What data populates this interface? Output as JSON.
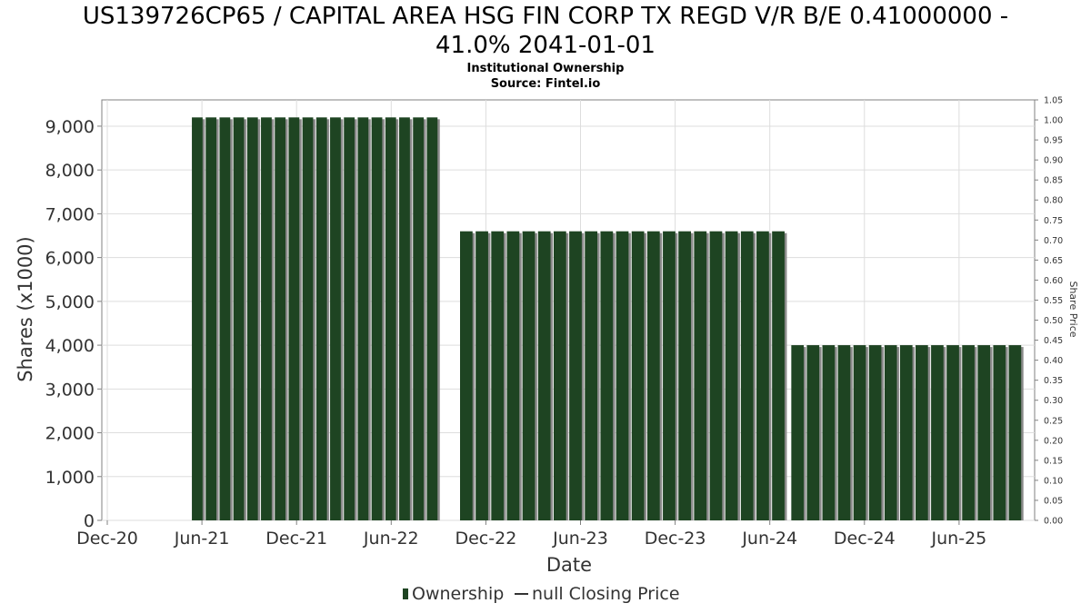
{
  "title_line1": "US139726CP65 / CAPITAL AREA HSG FIN CORP TX REGD V/R B/E 0.41000000 -",
  "title_line2": "41.0% 2041-01-01",
  "subtitle1": "Institutional Ownership",
  "subtitle2": "Source: Fintel.io",
  "colors": {
    "bar": "#1e4422",
    "bar_shadow": "#8a8a8a",
    "grid": "#dddddd",
    "axis": "#808080"
  },
  "chart_data": {
    "type": "bar",
    "xlabel": "Date",
    "ylabel": "Shares (x1000)",
    "y2label": "Share Price",
    "ylim": [
      0,
      9600
    ],
    "y2lim": [
      0,
      1.05
    ],
    "yticks": [
      "0",
      "1,000",
      "2,000",
      "3,000",
      "4,000",
      "5,000",
      "6,000",
      "7,000",
      "8,000",
      "9,000"
    ],
    "y2ticks": [
      "0.00",
      "0.05",
      "0.10",
      "0.15",
      "0.20",
      "0.25",
      "0.30",
      "0.35",
      "0.40",
      "0.45",
      "0.50",
      "0.55",
      "0.60",
      "0.65",
      "0.70",
      "0.75",
      "0.80",
      "0.85",
      "0.90",
      "0.95",
      "1.00",
      "1.05"
    ],
    "xticks": [
      "Dec-20",
      "Jun-21",
      "Dec-21",
      "Jun-22",
      "Dec-22",
      "Jun-23",
      "Dec-23",
      "Jun-24",
      "Dec-24",
      "Jun-25"
    ],
    "grid": true,
    "legend_position": "bottom",
    "legend": [
      {
        "marker": "bar",
        "label": "Ownership"
      },
      {
        "marker": "line",
        "label": "null Closing Price"
      }
    ],
    "series": [
      {
        "name": "Ownership",
        "segments": [
          {
            "from": "2021-03",
            "to": "2022-07",
            "value": 9200,
            "bars": 18
          },
          {
            "from": "2022-08",
            "to": "2024-05",
            "value": 6600,
            "bars": 21
          },
          {
            "from": "2024-05",
            "to": "2025-08",
            "value": 4000,
            "bars": 15
          }
        ]
      }
    ]
  }
}
